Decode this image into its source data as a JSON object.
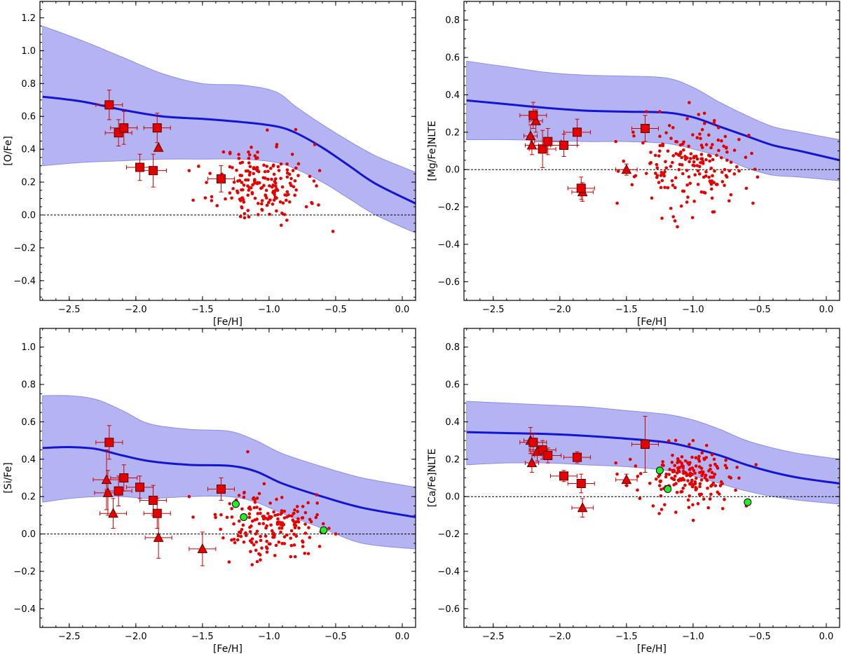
{
  "chart_data": [
    {
      "type": "scatter",
      "xlabel": "[Fe/H]",
      "ylabel": "[O/Fe]",
      "xlim": [
        -2.72,
        0.1
      ],
      "ylim": [
        -0.52,
        1.3
      ],
      "xticks": [
        -2.5,
        -2.0,
        -1.5,
        -1.0,
        -0.5,
        0.0
      ],
      "xtick_labels": [
        "−2.5",
        "−2.0",
        "−1.5",
        "−1.0",
        "−0.5",
        "0.0"
      ],
      "yticks": [
        -0.4,
        -0.2,
        0.0,
        0.2,
        0.4,
        0.6,
        0.8,
        1.0,
        1.2
      ],
      "ytick_labels": [
        "−0.4",
        "−0.2",
        "0.0",
        "0.2",
        "0.4",
        "0.6",
        "0.8",
        "1.0",
        "1.2"
      ],
      "reference_line_y": 0.0,
      "model": {
        "x": [
          -2.7,
          -2.4,
          -2.1,
          -1.8,
          -1.5,
          -1.2,
          -0.95,
          -0.8,
          -0.6,
          -0.4,
          -0.2,
          0.1
        ],
        "mean": [
          0.72,
          0.69,
          0.64,
          0.6,
          0.585,
          0.565,
          0.54,
          0.5,
          0.41,
          0.3,
          0.19,
          0.07
        ],
        "upper": [
          1.15,
          1.06,
          0.96,
          0.86,
          0.8,
          0.79,
          0.75,
          0.66,
          0.55,
          0.45,
          0.36,
          0.26
        ],
        "lower": [
          0.3,
          0.32,
          0.33,
          0.34,
          0.34,
          0.34,
          0.32,
          0.28,
          0.2,
          0.1,
          0.0,
          -0.11
        ]
      },
      "squares": [
        {
          "x": -2.2,
          "y": 0.67,
          "xerr": 0.1,
          "yerr": 0.09
        },
        {
          "x": -2.13,
          "y": 0.5,
          "xerr": 0.1,
          "yerr": 0.08
        },
        {
          "x": -2.09,
          "y": 0.53,
          "xerr": 0.1,
          "yerr": 0.1
        },
        {
          "x": -1.97,
          "y": 0.29,
          "xerr": 0.1,
          "yerr": 0.08
        },
        {
          "x": -1.87,
          "y": 0.27,
          "xerr": 0.1,
          "yerr": 0.1
        },
        {
          "x": -1.84,
          "y": 0.53,
          "xerr": 0.1,
          "yerr": 0.09
        },
        {
          "x": -1.36,
          "y": 0.22,
          "xerr": 0.1,
          "yerr": 0.08
        }
      ],
      "triangles": [
        {
          "x": -1.83,
          "y": 0.41,
          "xerr": 0.0,
          "yerr": 0.0
        }
      ],
      "circles": [],
      "dots": {
        "center": [
          -1.05,
          0.19
        ],
        "spread": [
          0.17,
          0.12
        ],
        "count": 180,
        "seed": 11,
        "extra": [
          [
            -1.57,
            0.09
          ],
          [
            -1.6,
            0.27
          ],
          [
            -0.8,
            0.52
          ],
          [
            -0.52,
            -0.1
          ],
          [
            -0.62,
            0.27
          ],
          [
            -1.2,
            0.32
          ],
          [
            -0.72,
            0.05
          ]
        ]
      }
    },
    {
      "type": "scatter",
      "xlabel": "[Fe/H]",
      "ylabel": "[Mg/Fe]NLTE",
      "xlim": [
        -2.72,
        0.1
      ],
      "ylim": [
        -0.7,
        0.9
      ],
      "xticks": [
        -2.5,
        -2.0,
        -1.5,
        -1.0,
        -0.5,
        0.0
      ],
      "xtick_labels": [
        "−2.5",
        "−2.0",
        "−1.5",
        "−1.0",
        "−0.5",
        "0.0"
      ],
      "yticks": [
        -0.6,
        -0.4,
        -0.2,
        0.0,
        0.2,
        0.4,
        0.6,
        0.8
      ],
      "ytick_labels": [
        "−0.6",
        "−0.4",
        "−0.2",
        "0.0",
        "0.2",
        "0.4",
        "0.6",
        "0.8"
      ],
      "reference_line_y": 0.0,
      "model": {
        "x": [
          -2.7,
          -2.4,
          -2.1,
          -1.8,
          -1.5,
          -1.2,
          -1.0,
          -0.8,
          -0.6,
          -0.4,
          -0.2,
          0.1
        ],
        "mean": [
          0.37,
          0.35,
          0.33,
          0.315,
          0.31,
          0.305,
          0.28,
          0.23,
          0.18,
          0.13,
          0.1,
          0.05
        ],
        "upper": [
          0.58,
          0.55,
          0.52,
          0.505,
          0.5,
          0.49,
          0.44,
          0.36,
          0.29,
          0.23,
          0.2,
          0.16
        ],
        "lower": [
          0.16,
          0.16,
          0.155,
          0.15,
          0.15,
          0.14,
          0.11,
          0.07,
          0.01,
          -0.03,
          -0.04,
          -0.06
        ]
      },
      "squares": [
        {
          "x": -2.2,
          "y": 0.29,
          "xerr": 0.1,
          "yerr": 0.07
        },
        {
          "x": -2.13,
          "y": 0.11,
          "xerr": 0.1,
          "yerr": 0.1
        },
        {
          "x": -2.09,
          "y": 0.15,
          "xerr": 0.1,
          "yerr": 0.07
        },
        {
          "x": -1.97,
          "y": 0.13,
          "xerr": 0.1,
          "yerr": 0.06
        },
        {
          "x": -1.87,
          "y": 0.2,
          "xerr": 0.1,
          "yerr": 0.07
        },
        {
          "x": -1.84,
          "y": -0.1,
          "xerr": 0.1,
          "yerr": 0.06
        },
        {
          "x": -1.36,
          "y": 0.22,
          "xerr": 0.1,
          "yerr": 0.07
        }
      ],
      "triangles": [
        {
          "x": -2.22,
          "y": 0.18,
          "xerr": 0.05,
          "yerr": 0.06
        },
        {
          "x": -2.21,
          "y": 0.13,
          "xerr": 0.05,
          "yerr": 0.05
        },
        {
          "x": -2.18,
          "y": 0.26,
          "xerr": 0.05,
          "yerr": 0.06
        },
        {
          "x": -1.83,
          "y": -0.12,
          "xerr": 0.08,
          "yerr": 0.05
        },
        {
          "x": -1.5,
          "y": 0.0,
          "xerr": 0.08,
          "yerr": 0.03
        }
      ],
      "circles": [],
      "dots": {
        "center": [
          -1.02,
          0.02
        ],
        "spread": [
          0.2,
          0.11
        ],
        "count": 185,
        "seed": 23,
        "extra": [
          [
            -1.57,
            -0.18
          ],
          [
            -1.45,
            0.2
          ],
          [
            -1.58,
            0.15
          ],
          [
            -0.55,
            -0.18
          ],
          [
            -0.6,
            -0.1
          ],
          [
            -1.35,
            0.31
          ],
          [
            -1.25,
            0.31
          ]
        ]
      }
    },
    {
      "type": "scatter",
      "xlabel": "[Fe/H]",
      "ylabel": "[Si/Fe]",
      "xlim": [
        -2.72,
        0.1
      ],
      "ylim": [
        -0.5,
        1.1
      ],
      "xticks": [
        -2.5,
        -2.0,
        -1.5,
        -1.0,
        -0.5,
        0.0
      ],
      "xtick_labels": [
        "−2.5",
        "−2.0",
        "−1.5",
        "−1.0",
        "−0.5",
        "0.0"
      ],
      "yticks": [
        -0.4,
        -0.2,
        0.0,
        0.2,
        0.4,
        0.6,
        0.8,
        1.0
      ],
      "ytick_labels": [
        "−0.4",
        "−0.2",
        "0.0",
        "0.2",
        "0.4",
        "0.6",
        "0.8",
        "1.0"
      ],
      "reference_line_y": 0.0,
      "model": {
        "x": [
          -2.7,
          -2.5,
          -2.3,
          -2.1,
          -1.9,
          -1.6,
          -1.3,
          -1.1,
          -0.9,
          -0.6,
          -0.3,
          0.1
        ],
        "mean": [
          0.46,
          0.465,
          0.455,
          0.42,
          0.39,
          0.37,
          0.365,
          0.335,
          0.27,
          0.2,
          0.14,
          0.09
        ],
        "upper": [
          0.74,
          0.74,
          0.72,
          0.66,
          0.59,
          0.56,
          0.55,
          0.5,
          0.43,
          0.36,
          0.3,
          0.25
        ],
        "lower": [
          0.17,
          0.19,
          0.2,
          0.2,
          0.19,
          0.2,
          0.2,
          0.17,
          0.11,
          0.03,
          -0.05,
          -0.08
        ]
      },
      "squares": [
        {
          "x": -2.2,
          "y": 0.49,
          "xerr": 0.1,
          "yerr": 0.09
        },
        {
          "x": -2.13,
          "y": 0.23,
          "xerr": 0.1,
          "yerr": 0.08
        },
        {
          "x": -2.09,
          "y": 0.3,
          "xerr": 0.1,
          "yerr": 0.07
        },
        {
          "x": -1.97,
          "y": 0.25,
          "xerr": 0.1,
          "yerr": 0.06
        },
        {
          "x": -1.87,
          "y": 0.18,
          "xerr": 0.1,
          "yerr": 0.08
        },
        {
          "x": -1.84,
          "y": 0.11,
          "xerr": 0.1,
          "yerr": 0.08
        },
        {
          "x": -1.36,
          "y": 0.24,
          "xerr": 0.1,
          "yerr": 0.06
        }
      ],
      "triangles": [
        {
          "x": -2.22,
          "y": 0.29,
          "xerr": 0.1,
          "yerr": 0.16
        },
        {
          "x": -2.21,
          "y": 0.22,
          "xerr": 0.1,
          "yerr": 0.12
        },
        {
          "x": -2.17,
          "y": 0.11,
          "xerr": 0.1,
          "yerr": 0.08
        },
        {
          "x": -1.83,
          "y": -0.02,
          "xerr": 0.1,
          "yerr": 0.11
        },
        {
          "x": -1.5,
          "y": -0.08,
          "xerr": 0.1,
          "yerr": 0.09
        }
      ],
      "circles": [
        {
          "x": -1.25,
          "y": 0.16
        },
        {
          "x": -1.19,
          "y": 0.09
        },
        {
          "x": -0.59,
          "y": 0.02
        }
      ],
      "dots": {
        "center": [
          -1.0,
          0.05
        ],
        "spread": [
          0.17,
          0.09
        ],
        "count": 180,
        "seed": 37,
        "extra": [
          [
            -1.57,
            0.09
          ],
          [
            -1.6,
            0.2
          ],
          [
            -1.16,
            0.44
          ],
          [
            -0.5,
            0.0
          ],
          [
            -1.3,
            -0.15
          ],
          [
            -0.55,
            0.03
          ]
        ]
      }
    },
    {
      "type": "scatter",
      "xlabel": "[Fe/H]",
      "ylabel": "[Ca/Fe]NLTE",
      "xlim": [
        -2.72,
        0.1
      ],
      "ylim": [
        -0.7,
        0.9
      ],
      "xticks": [
        -2.5,
        -2.0,
        -1.5,
        -1.0,
        -0.5,
        0.0
      ],
      "xtick_labels": [
        "−2.5",
        "−2.0",
        "−1.5",
        "−1.0",
        "−0.5",
        "0.0"
      ],
      "yticks": [
        -0.6,
        -0.4,
        -0.2,
        0.0,
        0.2,
        0.4,
        0.6,
        0.8
      ],
      "ytick_labels": [
        "−0.6",
        "−0.4",
        "−0.2",
        "0.0",
        "0.2",
        "0.4",
        "0.6",
        "0.8"
      ],
      "reference_line_y": 0.0,
      "model": {
        "x": [
          -2.7,
          -2.4,
          -2.1,
          -1.8,
          -1.5,
          -1.2,
          -1.0,
          -0.8,
          -0.6,
          -0.4,
          -0.2,
          0.1
        ],
        "mean": [
          0.345,
          0.34,
          0.335,
          0.325,
          0.31,
          0.29,
          0.26,
          0.22,
          0.17,
          0.13,
          0.1,
          0.07
        ],
        "upper": [
          0.51,
          0.5,
          0.49,
          0.48,
          0.46,
          0.44,
          0.41,
          0.36,
          0.3,
          0.26,
          0.23,
          0.2
        ],
        "lower": [
          0.17,
          0.18,
          0.18,
          0.17,
          0.16,
          0.14,
          0.11,
          0.07,
          0.03,
          0.0,
          -0.02,
          -0.04
        ]
      },
      "squares": [
        {
          "x": -2.2,
          "y": 0.29,
          "xerr": 0.1,
          "yerr": 0.05
        },
        {
          "x": -2.13,
          "y": 0.25,
          "xerr": 0.1,
          "yerr": 0.05
        },
        {
          "x": -2.09,
          "y": 0.22,
          "xerr": 0.1,
          "yerr": 0.04
        },
        {
          "x": -1.97,
          "y": 0.11,
          "xerr": 0.1,
          "yerr": 0.03
        },
        {
          "x": -1.87,
          "y": 0.21,
          "xerr": 0.1,
          "yerr": 0.03
        },
        {
          "x": -1.84,
          "y": 0.07,
          "xerr": 0.1,
          "yerr": 0.05
        },
        {
          "x": -1.36,
          "y": 0.28,
          "xerr": 0.1,
          "yerr": 0.15
        }
      ],
      "triangles": [
        {
          "x": -2.22,
          "y": 0.3,
          "xerr": 0.05,
          "yerr": 0.07
        },
        {
          "x": -2.21,
          "y": 0.18,
          "xerr": 0.05,
          "yerr": 0.05
        },
        {
          "x": -2.17,
          "y": 0.24,
          "xerr": 0.05,
          "yerr": 0.05
        },
        {
          "x": -1.83,
          "y": -0.06,
          "xerr": 0.08,
          "yerr": 0.05
        },
        {
          "x": -1.5,
          "y": 0.09,
          "xerr": 0.08,
          "yerr": 0.03
        }
      ],
      "circles": [
        {
          "x": -1.25,
          "y": 0.14
        },
        {
          "x": -1.19,
          "y": 0.04
        },
        {
          "x": -0.59,
          "y": -0.03
        }
      ],
      "dots": {
        "center": [
          -1.02,
          0.1
        ],
        "spread": [
          0.18,
          0.08
        ],
        "count": 185,
        "seed": 53,
        "extra": [
          [
            -1.57,
            0.12
          ],
          [
            -1.58,
            0.18
          ],
          [
            -1.4,
            -0.01
          ],
          [
            -0.6,
            -0.05
          ],
          [
            -1.3,
            -0.05
          ],
          [
            -1.0,
            0.3
          ]
        ]
      }
    }
  ]
}
